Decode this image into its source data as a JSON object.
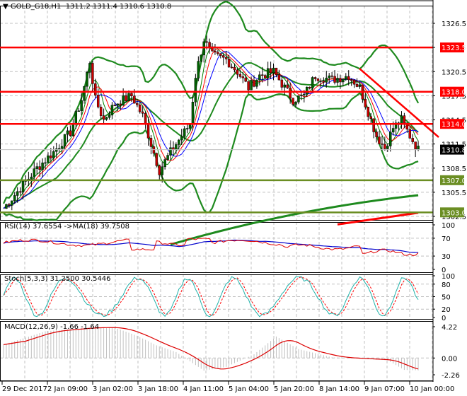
{
  "header": {
    "symbol": "GOLD_G18,H1",
    "ohlc": "1311.2 1311.4 1310.6 1310.8",
    "title_text": "GOLD_G18,H1  1311.2 1311.4 1310.6 1310.8"
  },
  "main_panel": {
    "price_ticks": [
      "1326.5",
      "1323.5",
      "1320.5",
      "1317.5",
      "1314.5",
      "1311.5",
      "1308.5",
      "1305.5",
      "1302.5"
    ],
    "current_price": "1310.8",
    "horizontal_levels": [
      {
        "value": "1323.5",
        "color": "#ff0000",
        "type": "resistance"
      },
      {
        "value": "1318.0",
        "color": "#ff0000",
        "type": "resistance"
      },
      {
        "value": "1314.0",
        "color": "#ff0000",
        "type": "resistance"
      },
      {
        "value": "1307.0",
        "color": "#6b8e23",
        "type": "support"
      },
      {
        "value": "1303.0",
        "color": "#6b8e23",
        "type": "support"
      }
    ]
  },
  "rsi_panel": {
    "title": "RSI(14) 37.6554  ->MA(18) 39.7508",
    "ticks": [
      "100",
      "70",
      "30",
      "0"
    ]
  },
  "stoch_panel": {
    "title": "Stoch(5,3,3) 31.2500 30.5446",
    "ticks": [
      "100",
      "80",
      "50",
      "20",
      "0"
    ]
  },
  "macd_panel": {
    "title": "MACD(12,26,9) -1.66 -1.64",
    "ticks": [
      "4.22",
      "0.00",
      "-2.26"
    ]
  },
  "time_axis": {
    "labels": [
      "29 Dec 2017",
      "2 Jan 09:00",
      "3 Jan 02:00",
      "3 Jan 18:00",
      "4 Jan 11:00",
      "5 Jan 04:00",
      "5 Jan 20:00",
      "8 Jan 14:00",
      "9 Jan 07:00",
      "10 Jan 00:00"
    ]
  },
  "colors": {
    "resistance": "#ff0000",
    "support": "#6b8e23",
    "bull_candle": "#006400",
    "bear_candle": "#cc0000",
    "bollinger": "#1e8a1e",
    "ma_fast": "#ff0000",
    "ma_slow": "#0000ff",
    "rsi": "#e00000",
    "rsi_ma": "#0000cc",
    "stoch_main": "#20b2aa",
    "stoch_signal": "#ff0000",
    "macd_hist": "#c0c0c0",
    "macd_signal": "#dd0000",
    "current_price_bg": "#000000"
  },
  "chart_data": {
    "type": "candlestick",
    "title": "GOLD_G18,H1",
    "timeframe": "H1",
    "ohlc_last": {
      "open": 1311.2,
      "high": 1311.4,
      "low": 1310.6,
      "close": 1310.8
    },
    "x_labels": [
      "29 Dec 2017",
      "2 Jan 09:00",
      "3 Jan 02:00",
      "3 Jan 18:00",
      "4 Jan 11:00",
      "5 Jan 04:00",
      "5 Jan 20:00",
      "8 Jan 14:00",
      "9 Jan 07:00",
      "10 Jan 00:00"
    ],
    "ylim": [
      1302.5,
      1326.5
    ],
    "y_ticks": [
      1326.5,
      1323.5,
      1320.5,
      1317.5,
      1314.5,
      1311.5,
      1308.5,
      1305.5,
      1302.5
    ],
    "levels": [
      1323.5,
      1318.0,
      1314.0,
      1307.0,
      1303.0
    ],
    "close_approx": [
      1303.5,
      1306.0,
      1309.5,
      1311.5,
      1314.0,
      1316.5,
      1319.5,
      1321.5,
      1315.0,
      1316.5,
      1317.5,
      1318.0,
      1316.0,
      1313.0,
      1309.0,
      1308.5,
      1312.0,
      1314.0,
      1318.5,
      1323.5,
      1325.0,
      1322.5,
      1319.5,
      1318.5,
      1319.5,
      1320.5,
      1320.0,
      1320.0,
      1319.5,
      1320.0,
      1317.5,
      1315.5,
      1312.5,
      1310.5,
      1312.0,
      1313.5,
      1312.0,
      1310.8
    ],
    "indicators": {
      "rsi": {
        "period": 14,
        "value": 37.6554,
        "ma_period": 18,
        "ma_value": 39.7508,
        "ylim": [
          0,
          100
        ],
        "levels": [
          70,
          30
        ]
      },
      "stochastic": {
        "params": [
          5,
          3,
          3
        ],
        "main": 31.25,
        "signal": 30.5446,
        "ylim": [
          0,
          100
        ],
        "levels": [
          80,
          50,
          20
        ]
      },
      "macd": {
        "params": [
          12,
          26,
          9
        ],
        "main": -1.66,
        "signal": -1.64,
        "ylim": [
          -2.26,
          4.22
        ]
      }
    },
    "grid": true
  }
}
